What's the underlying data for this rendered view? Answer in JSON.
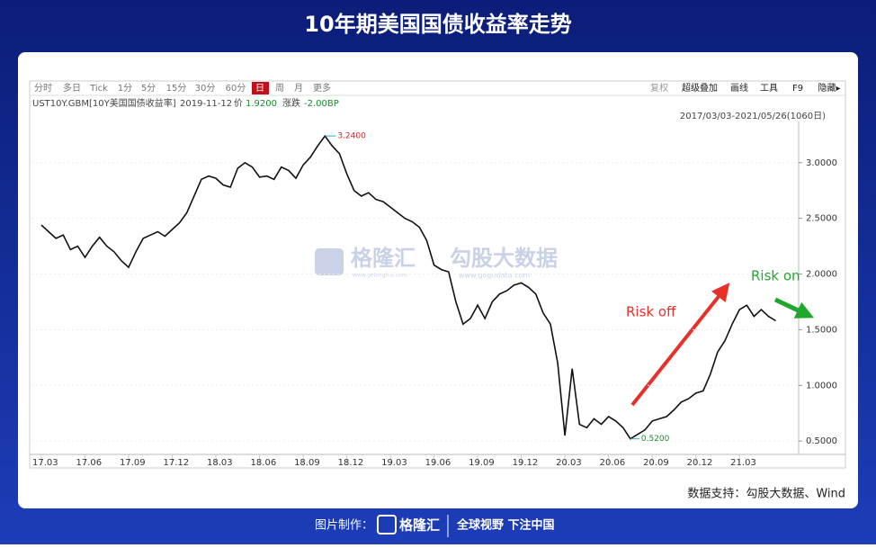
{
  "page": {
    "title": "10年期美国国债收益率走势",
    "toolbar_left": [
      "分时",
      "多日",
      "Tick",
      "1分",
      "5分",
      "15分",
      "30分",
      "60分",
      "日",
      "周",
      "月",
      "更多"
    ],
    "toolbar_right": [
      "复权",
      "超级叠加",
      "画线",
      "工具",
      "F9",
      "隐藏▸"
    ],
    "quote": {
      "symbol": "UST10Y.GBM[10Y美国国债收益率]",
      "date": "2019-11-12",
      "price_label": "价",
      "price": "1.9200",
      "change_label": "涨跌",
      "change": "-2.00BP"
    },
    "range": "2017/03/03-2021/05/26(1060日)",
    "watermark": [
      "格隆汇",
      "www.gelonghui.com",
      "勾股大数据",
      "www.gogudata.com"
    ],
    "source": "数据支持：勾股大数据、Wind",
    "footer": {
      "made_by": "图片制作：",
      "brand": "格隆汇",
      "slogan": "全球视野 下注中国"
    }
  },
  "chart_data": {
    "type": "line",
    "x": [
      0,
      0.5,
      1,
      1.5,
      2,
      2.5,
      3,
      3.5,
      4,
      4.5,
      5,
      5.5,
      6,
      6.5,
      7,
      7.5,
      8,
      8.5,
      9,
      9.5,
      10,
      10.5,
      11,
      11.5,
      12,
      12.5,
      13,
      13.5,
      14,
      14.5,
      15,
      15.5,
      16,
      16.5,
      17,
      17.5,
      18,
      18.5,
      19,
      19.5,
      20,
      20.5,
      21,
      21.5,
      22,
      22.5,
      23,
      23.5,
      24,
      24.5,
      25,
      25.5,
      26,
      26.5,
      27,
      27.5,
      28,
      28.5,
      29,
      29.5,
      30,
      30.5,
      31,
      31.5,
      32,
      32.5,
      33,
      33.5,
      34,
      34.5,
      35,
      35.5,
      36,
      36.5,
      37,
      37.5,
      38,
      38.5,
      39,
      39.5,
      40,
      40.5,
      41,
      41.5,
      42,
      42.5,
      43,
      43.5,
      44,
      44.5,
      45,
      45.5,
      46,
      46.5,
      47,
      47.5,
      48,
      48.5,
      49,
      49.5,
      50,
      50.5
    ],
    "series": [
      {
        "name": "UST10Y.GBM",
        "color": "#111111",
        "values": [
          2.44,
          2.38,
          2.32,
          2.35,
          2.22,
          2.25,
          2.15,
          2.25,
          2.33,
          2.25,
          2.2,
          2.12,
          2.06,
          2.2,
          2.32,
          2.35,
          2.38,
          2.34,
          2.4,
          2.46,
          2.55,
          2.7,
          2.85,
          2.88,
          2.86,
          2.8,
          2.78,
          2.95,
          3.0,
          2.96,
          2.87,
          2.88,
          2.85,
          2.96,
          2.93,
          2.86,
          2.98,
          3.05,
          3.15,
          3.24,
          3.15,
          3.08,
          2.9,
          2.75,
          2.7,
          2.73,
          2.67,
          2.65,
          2.6,
          2.55,
          2.5,
          2.47,
          2.42,
          2.3,
          2.08,
          2.04,
          2.02,
          1.75,
          1.55,
          1.6,
          1.72,
          1.6,
          1.75,
          1.82,
          1.85,
          1.9,
          1.92,
          1.88,
          1.82,
          1.65,
          1.55,
          1.2,
          0.55,
          1.15,
          0.65,
          0.62,
          0.7,
          0.65,
          0.72,
          0.68,
          0.62,
          0.52,
          0.56,
          0.6,
          0.68,
          0.7,
          0.72,
          0.78,
          0.85,
          0.88,
          0.93,
          0.95,
          1.1,
          1.3,
          1.4,
          1.55,
          1.68,
          1.72,
          1.62,
          1.68,
          1.62,
          1.58
        ]
      }
    ],
    "xlim": [
      -0.68,
      52.07
    ],
    "xticks": [
      {
        "value": 0,
        "label": "17.03"
      },
      {
        "value": 3,
        "label": "17.06"
      },
      {
        "value": 6,
        "label": "17.09"
      },
      {
        "value": 9,
        "label": "17.12"
      },
      {
        "value": 12,
        "label": "18.03"
      },
      {
        "value": 15,
        "label": "18.06"
      },
      {
        "value": 18,
        "label": "18.09"
      },
      {
        "value": 21,
        "label": "18.12"
      },
      {
        "value": 24,
        "label": "19.03"
      },
      {
        "value": 27,
        "label": "19.06"
      },
      {
        "value": 30,
        "label": "19.09"
      },
      {
        "value": 33,
        "label": "19.12"
      },
      {
        "value": 36,
        "label": "20.03"
      },
      {
        "value": 39,
        "label": "20.06"
      },
      {
        "value": 42,
        "label": "20.09"
      },
      {
        "value": 45,
        "label": "20.12"
      },
      {
        "value": 48,
        "label": "21.03"
      }
    ],
    "ylim": [
      0.38,
      3.37
    ],
    "yticks": [
      {
        "value": 0.5,
        "label": "0.5000"
      },
      {
        "value": 1,
        "label": "1.0000"
      },
      {
        "value": 1.5,
        "label": "1.5000"
      },
      {
        "value": 2,
        "label": "2.0000"
      },
      {
        "value": 2.5,
        "label": "2.5000"
      },
      {
        "value": 3,
        "label": "3.0000"
      }
    ],
    "max_label": "3.2400",
    "min_label": "0.5200",
    "annotations": [
      "Risk off",
      "Risk on"
    ]
  }
}
